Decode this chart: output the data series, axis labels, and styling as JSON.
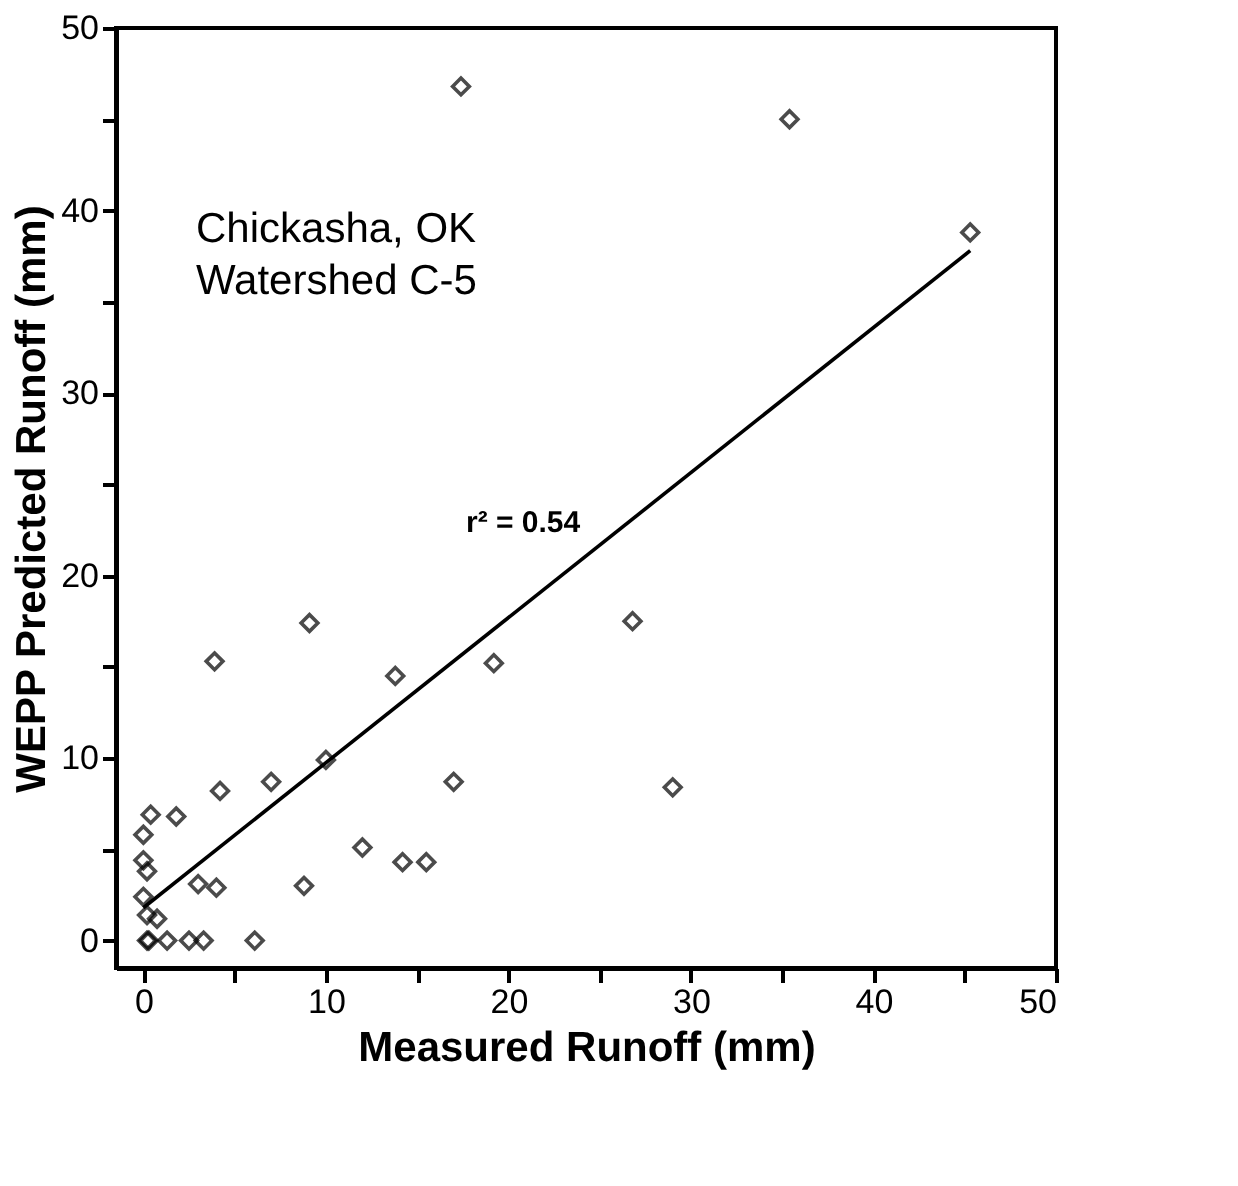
{
  "chart_data": {
    "type": "scatter",
    "xlabel": "Measured Runoff (mm)",
    "ylabel": "WEPP Predicted Runoff (mm)",
    "xlim": [
      -1.5,
      50
    ],
    "ylim": [
      -1.5,
      50
    ],
    "xticks": [
      0,
      {
        "value": 5,
        "label": null
      },
      10,
      {
        "value": 15,
        "label": null
      },
      20,
      {
        "value": 25,
        "label": null
      },
      30,
      {
        "value": 35,
        "label": null
      },
      40,
      {
        "value": 45,
        "label": null
      },
      50
    ],
    "yticks": [
      0,
      {
        "value": 5,
        "label": null
      },
      10,
      {
        "value": 15,
        "label": null
      },
      20,
      {
        "value": 25,
        "label": null
      },
      30,
      {
        "value": 35,
        "label": null
      },
      40,
      {
        "value": 45,
        "label": null
      },
      50
    ],
    "grid": false,
    "marker": "diamond",
    "series": [
      {
        "color": "#000000",
        "x": [
          17.4,
          35.4,
          45.3,
          26.8,
          29.0,
          9.1,
          3.9,
          13.8,
          19.2,
          10.0,
          4.2,
          7.0,
          17.0,
          0.4,
          1.8,
          0.0,
          0.0,
          0.2,
          0.0,
          0.2,
          0.75,
          3.0,
          4.0,
          8.8,
          12.0,
          14.2,
          15.5,
          0.2,
          0.3,
          1.3,
          2.5,
          3.3,
          6.1
        ],
        "values": [
          46.8,
          45.0,
          38.8,
          17.5,
          8.4,
          17.4,
          15.3,
          14.5,
          15.2,
          9.9,
          8.2,
          8.7,
          8.7,
          6.9,
          6.8,
          5.8,
          4.4,
          3.8,
          2.4,
          1.4,
          1.2,
          3.1,
          2.9,
          3.0,
          5.1,
          4.3,
          4.3,
          0,
          0,
          0,
          0,
          0,
          0
        ]
      },
      {
        "type": "line",
        "color": "#000000",
        "x": [
          0,
          45.3
        ],
        "values": [
          1.8,
          37.8
        ],
        "marker": "none",
        "line_style": "solid"
      }
    ],
    "annotations": [
      "Chickasha, OK",
      "Watershed C-5",
      "r² = 0.54"
    ]
  }
}
